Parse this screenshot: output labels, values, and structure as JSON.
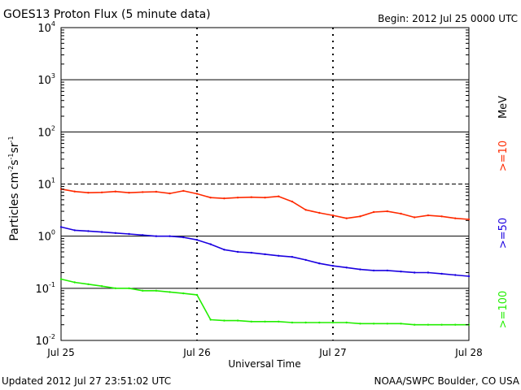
{
  "header": {
    "title": "GOES13 Proton Flux (5 minute data)",
    "begin": "Begin: 2012 Jul 25 0000 UTC"
  },
  "footer": {
    "updated": "Updated 2012 Jul 27 23:51:02 UTC",
    "credit": "NOAA/SWPC Boulder, CO USA"
  },
  "colors": {
    "red": "#ff2a00",
    "blue": "#1a00e0",
    "green": "#22ee00"
  },
  "chart_data": {
    "type": "line",
    "title": "GOES13 Proton Flux (5 minute data)",
    "xlabel": "Universal Time",
    "ylabel_base": "Particles cm",
    "ylabel_tail": "sr",
    "yscale": "log",
    "ylim": [
      0.01,
      10000
    ],
    "xlim": [
      0,
      3
    ],
    "x_ticks": [
      {
        "value": 0,
        "label": "Jul 25"
      },
      {
        "value": 1,
        "label": "Jul 26"
      },
      {
        "value": 2,
        "label": "Jul 27"
      },
      {
        "value": 3,
        "label": "Jul 28"
      }
    ],
    "y_ticks": [
      {
        "value": 0.01,
        "exp": "-2"
      },
      {
        "value": 0.1,
        "exp": "-1"
      },
      {
        "value": 1,
        "exp": "0"
      },
      {
        "value": 10,
        "exp": "1"
      },
      {
        "value": 100,
        "exp": "2"
      },
      {
        "value": 1000,
        "exp": "3"
      },
      {
        "value": 10000,
        "exp": "4"
      }
    ],
    "unit_label": "MeV",
    "alert_threshold": 10,
    "series": [
      {
        "name": ">=10",
        "color": "#ff2a00",
        "x": [
          0,
          0.1,
          0.2,
          0.3,
          0.4,
          0.5,
          0.6,
          0.7,
          0.8,
          0.9,
          1.0,
          1.1,
          1.2,
          1.3,
          1.4,
          1.5,
          1.6,
          1.7,
          1.8,
          1.9,
          2.0,
          2.1,
          2.2,
          2.3,
          2.4,
          2.5,
          2.6,
          2.7,
          2.8,
          2.9,
          3.0
        ],
        "values": [
          8.0,
          7.2,
          6.8,
          6.9,
          7.2,
          6.8,
          7.0,
          7.1,
          6.6,
          7.4,
          6.5,
          5.5,
          5.3,
          5.5,
          5.6,
          5.5,
          5.8,
          4.6,
          3.2,
          2.8,
          2.5,
          2.2,
          2.4,
          2.9,
          3.0,
          2.7,
          2.3,
          2.5,
          2.4,
          2.2,
          2.1
        ]
      },
      {
        "name": ">=50",
        "color": "#1a00e0",
        "x": [
          0,
          0.1,
          0.2,
          0.3,
          0.4,
          0.5,
          0.6,
          0.7,
          0.8,
          0.9,
          1.0,
          1.1,
          1.2,
          1.3,
          1.4,
          1.5,
          1.6,
          1.7,
          1.8,
          1.9,
          2.0,
          2.1,
          2.2,
          2.3,
          2.4,
          2.5,
          2.6,
          2.7,
          2.8,
          2.9,
          3.0
        ],
        "values": [
          1.5,
          1.3,
          1.25,
          1.2,
          1.15,
          1.1,
          1.05,
          1.0,
          1.0,
          0.95,
          0.85,
          0.7,
          0.55,
          0.5,
          0.48,
          0.45,
          0.42,
          0.4,
          0.35,
          0.3,
          0.27,
          0.25,
          0.23,
          0.22,
          0.22,
          0.21,
          0.2,
          0.2,
          0.19,
          0.18,
          0.17
        ]
      },
      {
        "name": ">=100",
        "color": "#22ee00",
        "x": [
          0,
          0.1,
          0.2,
          0.3,
          0.4,
          0.5,
          0.6,
          0.7,
          0.8,
          0.9,
          1.0,
          1.1,
          1.2,
          1.3,
          1.4,
          1.5,
          1.6,
          1.7,
          1.8,
          1.9,
          2.0,
          2.1,
          2.2,
          2.3,
          2.4,
          2.5,
          2.6,
          2.7,
          2.8,
          2.9,
          3.0
        ],
        "values": [
          0.15,
          0.13,
          0.12,
          0.11,
          0.1,
          0.1,
          0.09,
          0.09,
          0.085,
          0.08,
          0.075,
          0.025,
          0.024,
          0.024,
          0.023,
          0.023,
          0.023,
          0.022,
          0.022,
          0.022,
          0.022,
          0.022,
          0.021,
          0.021,
          0.021,
          0.021,
          0.02,
          0.02,
          0.02,
          0.02,
          0.02
        ]
      }
    ]
  }
}
